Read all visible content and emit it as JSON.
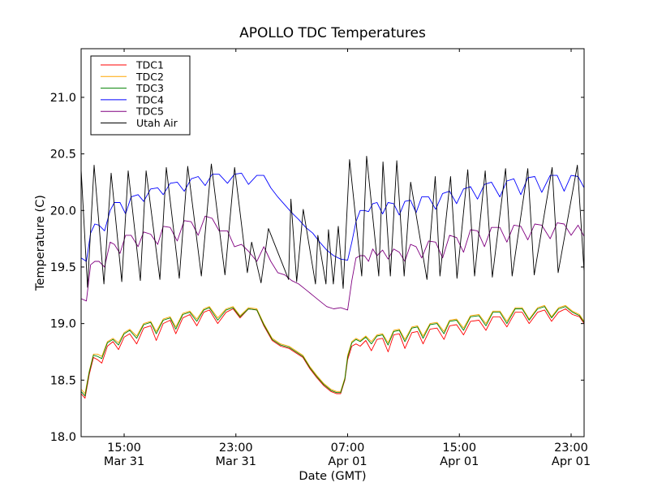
{
  "chart_data": {
    "type": "line",
    "title": "APOLLO TDC Temperatures",
    "xlabel": "Date (GMT)",
    "ylabel": "Temperature (C)",
    "x_units": "hours since Mar 31 00:00 GMT",
    "xlim": [
      11.92,
      47.93
    ],
    "ylim": [
      18.0,
      21.43
    ],
    "grid": false,
    "legend_position": "top-left",
    "xticks": [
      {
        "value": 15,
        "line1": "15:00",
        "line2": "Mar 31"
      },
      {
        "value": 23,
        "line1": "23:00",
        "line2": "Mar 31"
      },
      {
        "value": 31,
        "line1": "07:00",
        "line2": "Apr 01"
      },
      {
        "value": 39,
        "line1": "15:00",
        "line2": "Apr 01"
      },
      {
        "value": 47,
        "line1": "23:00",
        "line2": "Apr 01"
      }
    ],
    "yticks": [
      {
        "value": 18.0,
        "label": "18.0"
      },
      {
        "value": 18.5,
        "label": "18.5"
      },
      {
        "value": 19.0,
        "label": "19.0"
      },
      {
        "value": 19.5,
        "label": "19.5"
      },
      {
        "value": 20.0,
        "label": "20.0"
      },
      {
        "value": 20.5,
        "label": "20.5"
      },
      {
        "value": 21.0,
        "label": "21.0"
      }
    ],
    "series": [
      {
        "name": "TDC1",
        "color": "#ff0000",
        "x": [
          11.92,
          12.2,
          12.5,
          12.8,
          13.1,
          13.4,
          13.8,
          14.2,
          14.6,
          15.0,
          15.4,
          15.9,
          16.4,
          16.9,
          17.3,
          17.8,
          18.3,
          18.7,
          19.2,
          19.7,
          20.2,
          20.7,
          21.1,
          21.7,
          22.3,
          22.8,
          23.3,
          23.9,
          24.5,
          25.0,
          25.6,
          26.2,
          26.8,
          27.3,
          27.8,
          28.3,
          28.8,
          29.3,
          29.8,
          30.2,
          30.5,
          30.8,
          31.0,
          31.3,
          31.6,
          31.9,
          32.3,
          32.7,
          33.1,
          33.5,
          33.9,
          34.3,
          34.7,
          35.1,
          35.6,
          36.0,
          36.4,
          36.9,
          37.4,
          37.9,
          38.3,
          38.8,
          39.3,
          39.8,
          40.4,
          40.9,
          41.4,
          41.9,
          42.4,
          43.0,
          43.5,
          44.0,
          44.6,
          45.1,
          45.6,
          46.1,
          46.6,
          47.1,
          47.6,
          47.93
        ],
        "y": [
          18.38,
          18.34,
          18.55,
          18.7,
          18.68,
          18.65,
          18.8,
          18.84,
          18.77,
          18.88,
          18.91,
          18.82,
          18.96,
          18.98,
          18.85,
          19.0,
          19.03,
          18.91,
          19.05,
          19.08,
          18.98,
          19.1,
          19.12,
          19.0,
          19.1,
          19.13,
          19.05,
          19.13,
          19.12,
          18.98,
          18.85,
          18.8,
          18.78,
          18.74,
          18.7,
          18.6,
          18.52,
          18.45,
          18.4,
          18.38,
          18.38,
          18.5,
          18.68,
          18.8,
          18.82,
          18.8,
          18.85,
          18.76,
          18.86,
          18.87,
          18.75,
          18.9,
          18.91,
          18.78,
          18.92,
          18.93,
          18.82,
          18.95,
          18.96,
          18.86,
          18.98,
          18.99,
          18.9,
          19.02,
          19.03,
          18.94,
          19.06,
          19.06,
          18.97,
          19.1,
          19.1,
          19.0,
          19.1,
          19.12,
          19.02,
          19.1,
          19.13,
          19.08,
          19.06,
          19.0
        ]
      },
      {
        "name": "TDC2",
        "color": "#ffa500",
        "x": [
          11.92,
          12.2,
          12.5,
          12.8,
          13.1,
          13.4,
          13.8,
          14.2,
          14.6,
          15.0,
          15.4,
          15.9,
          16.4,
          16.9,
          17.3,
          17.8,
          18.3,
          18.7,
          19.2,
          19.7,
          20.2,
          20.7,
          21.1,
          21.7,
          22.3,
          22.8,
          23.3,
          23.9,
          24.5,
          25.0,
          25.6,
          26.2,
          26.8,
          27.3,
          27.8,
          28.3,
          28.8,
          29.3,
          29.8,
          30.2,
          30.5,
          30.8,
          31.0,
          31.3,
          31.6,
          31.9,
          32.3,
          32.7,
          33.1,
          33.5,
          33.9,
          34.3,
          34.7,
          35.1,
          35.6,
          36.0,
          36.4,
          36.9,
          37.4,
          37.9,
          38.3,
          38.8,
          39.3,
          39.8,
          40.4,
          40.9,
          41.4,
          41.9,
          42.4,
          43.0,
          43.5,
          44.0,
          44.6,
          45.1,
          45.6,
          46.1,
          46.6,
          47.1,
          47.6,
          47.93
        ],
        "y": [
          18.42,
          18.38,
          18.58,
          18.73,
          18.73,
          18.71,
          18.84,
          18.87,
          18.83,
          18.92,
          18.95,
          18.89,
          19.0,
          19.02,
          18.93,
          19.04,
          19.06,
          18.97,
          19.09,
          19.11,
          19.04,
          19.13,
          19.15,
          19.05,
          19.13,
          19.15,
          19.07,
          19.14,
          19.13,
          19.0,
          18.87,
          18.82,
          18.8,
          18.76,
          18.72,
          18.62,
          18.54,
          18.47,
          18.42,
          18.4,
          18.4,
          18.52,
          18.72,
          18.84,
          18.87,
          18.85,
          18.89,
          18.84,
          18.9,
          18.91,
          18.83,
          18.94,
          18.95,
          18.86,
          18.97,
          18.98,
          18.89,
          19.0,
          19.01,
          18.93,
          19.03,
          19.04,
          18.96,
          19.07,
          19.08,
          19.0,
          19.11,
          19.11,
          19.02,
          19.14,
          19.14,
          19.04,
          19.14,
          19.16,
          19.06,
          19.14,
          19.16,
          19.11,
          19.08,
          19.02
        ]
      },
      {
        "name": "TDC3",
        "color": "#008000",
        "x": [
          11.92,
          12.2,
          12.5,
          12.8,
          13.1,
          13.4,
          13.8,
          14.2,
          14.6,
          15.0,
          15.4,
          15.9,
          16.4,
          16.9,
          17.3,
          17.8,
          18.3,
          18.7,
          19.2,
          19.7,
          20.2,
          20.7,
          21.1,
          21.7,
          22.3,
          22.8,
          23.3,
          23.9,
          24.5,
          25.0,
          25.6,
          26.2,
          26.8,
          27.3,
          27.8,
          28.3,
          28.8,
          29.3,
          29.8,
          30.2,
          30.5,
          30.8,
          31.0,
          31.3,
          31.6,
          31.9,
          32.3,
          32.7,
          33.1,
          33.5,
          33.9,
          34.3,
          34.7,
          35.1,
          35.6,
          36.0,
          36.4,
          36.9,
          37.4,
          37.9,
          38.3,
          38.8,
          39.3,
          39.8,
          40.4,
          40.9,
          41.4,
          41.9,
          42.4,
          43.0,
          43.5,
          44.0,
          44.6,
          45.1,
          45.6,
          46.1,
          46.6,
          47.1,
          47.6,
          47.93
        ],
        "y": [
          18.4,
          18.36,
          18.57,
          18.72,
          18.71,
          18.69,
          18.83,
          18.86,
          18.81,
          18.91,
          18.94,
          18.87,
          18.99,
          19.01,
          18.91,
          19.03,
          19.05,
          18.95,
          19.08,
          19.1,
          19.02,
          19.12,
          19.14,
          19.03,
          19.12,
          19.14,
          19.06,
          19.13,
          19.12,
          18.99,
          18.86,
          18.81,
          18.79,
          18.75,
          18.71,
          18.61,
          18.53,
          18.46,
          18.41,
          18.39,
          18.39,
          18.51,
          18.7,
          18.83,
          18.86,
          18.84,
          18.88,
          18.82,
          18.89,
          18.9,
          18.81,
          18.93,
          18.94,
          18.84,
          18.96,
          18.97,
          18.87,
          18.99,
          19.0,
          18.91,
          19.02,
          19.03,
          18.94,
          19.06,
          19.07,
          18.98,
          19.1,
          19.1,
          19.0,
          19.13,
          19.13,
          19.03,
          19.13,
          19.15,
          19.05,
          19.13,
          19.15,
          19.1,
          19.07,
          19.01
        ]
      },
      {
        "name": "TDC4",
        "color": "#0000ff",
        "x": [
          11.92,
          12.3,
          12.6,
          12.9,
          13.2,
          13.6,
          14.0,
          14.3,
          14.7,
          15.1,
          15.5,
          16.0,
          16.4,
          16.9,
          17.4,
          17.8,
          18.3,
          18.8,
          19.3,
          19.8,
          20.3,
          20.8,
          21.3,
          21.8,
          22.4,
          22.9,
          23.4,
          23.9,
          24.5,
          25.0,
          25.5,
          26.0,
          26.5,
          27.0,
          27.5,
          28.0,
          28.5,
          29.0,
          29.5,
          30.0,
          30.5,
          31.0,
          31.3,
          31.6,
          31.9,
          32.2,
          32.5,
          32.8,
          33.1,
          33.5,
          33.9,
          34.3,
          34.7,
          35.1,
          35.5,
          35.9,
          36.3,
          36.8,
          37.3,
          37.8,
          38.3,
          38.8,
          39.3,
          39.8,
          40.3,
          40.8,
          41.3,
          41.9,
          42.4,
          42.9,
          43.4,
          43.9,
          44.4,
          44.9,
          45.5,
          46.0,
          46.5,
          47.0,
          47.5,
          47.93
        ],
        "y": [
          19.58,
          19.55,
          19.8,
          19.88,
          19.87,
          19.82,
          20.0,
          20.07,
          20.07,
          19.97,
          20.12,
          20.14,
          20.08,
          20.19,
          20.2,
          20.14,
          20.24,
          20.25,
          20.17,
          20.28,
          20.3,
          20.22,
          20.32,
          20.32,
          20.24,
          20.32,
          20.33,
          20.23,
          20.31,
          20.31,
          20.2,
          20.12,
          20.05,
          19.98,
          19.92,
          19.85,
          19.8,
          19.72,
          19.65,
          19.6,
          19.57,
          19.56,
          19.72,
          19.9,
          20.0,
          20.0,
          19.99,
          20.06,
          20.07,
          19.97,
          20.07,
          20.06,
          19.96,
          20.08,
          20.09,
          19.98,
          20.12,
          20.12,
          20.01,
          20.15,
          20.17,
          20.06,
          20.19,
          20.21,
          20.1,
          20.23,
          20.25,
          20.12,
          20.26,
          20.28,
          20.14,
          20.29,
          20.3,
          20.16,
          20.31,
          20.31,
          20.17,
          20.31,
          20.3,
          20.2
        ]
      },
      {
        "name": "TDC5",
        "color": "#800080",
        "x": [
          11.92,
          12.3,
          12.6,
          12.9,
          13.2,
          13.6,
          14.0,
          14.3,
          14.7,
          15.1,
          15.5,
          16.0,
          16.4,
          16.9,
          17.4,
          17.8,
          18.3,
          18.8,
          19.3,
          19.8,
          20.3,
          20.8,
          21.3,
          21.8,
          22.4,
          22.9,
          23.4,
          23.9,
          24.5,
          25.0,
          25.5,
          26.0,
          26.5,
          27.0,
          27.5,
          28.0,
          28.5,
          29.0,
          29.5,
          30.0,
          30.5,
          31.0,
          31.3,
          31.6,
          31.9,
          32.2,
          32.5,
          32.8,
          33.1,
          33.5,
          33.9,
          34.3,
          34.7,
          35.1,
          35.5,
          35.9,
          36.3,
          36.8,
          37.3,
          37.8,
          38.3,
          38.8,
          39.3,
          39.8,
          40.3,
          40.8,
          41.3,
          41.9,
          42.4,
          42.9,
          43.4,
          43.9,
          44.4,
          44.9,
          45.5,
          46.0,
          46.5,
          47.0,
          47.5,
          47.93
        ],
        "y": [
          19.22,
          19.2,
          19.52,
          19.55,
          19.55,
          19.5,
          19.72,
          19.7,
          19.62,
          19.78,
          19.78,
          19.68,
          19.81,
          19.79,
          19.7,
          19.86,
          19.85,
          19.73,
          19.91,
          19.9,
          19.78,
          19.95,
          19.93,
          19.82,
          19.82,
          19.68,
          19.7,
          19.64,
          19.55,
          19.68,
          19.55,
          19.45,
          19.43,
          19.38,
          19.35,
          19.3,
          19.25,
          19.2,
          19.15,
          19.13,
          19.14,
          19.12,
          19.38,
          19.58,
          19.6,
          19.6,
          19.55,
          19.66,
          19.6,
          19.65,
          19.57,
          19.66,
          19.63,
          19.55,
          19.7,
          19.68,
          19.58,
          19.73,
          19.72,
          19.58,
          19.78,
          19.76,
          19.63,
          19.83,
          19.82,
          19.68,
          19.85,
          19.85,
          19.72,
          19.87,
          19.86,
          19.74,
          19.88,
          19.87,
          19.75,
          19.89,
          19.88,
          19.78,
          19.87,
          19.77
        ]
      },
      {
        "name": "Utah Air",
        "color": "#000000",
        "x": [
          11.92,
          12.38,
          12.85,
          13.55,
          14.07,
          14.83,
          15.29,
          16.16,
          16.57,
          17.56,
          18.02,
          18.95,
          19.55,
          20.53,
          21.24,
          22.22,
          22.91,
          23.82,
          24.13,
          24.8,
          25.33,
          26.77,
          26.94,
          27.35,
          27.82,
          28.7,
          28.87,
          29.45,
          29.63,
          29.98,
          30.33,
          30.68,
          31.14,
          32.01,
          32.36,
          33.23,
          33.53,
          34.06,
          34.52,
          35.05,
          35.51,
          36.68,
          37.27,
          37.61,
          38.37,
          38.83,
          39.6,
          40.09,
          40.85,
          41.36,
          42.31,
          42.78,
          43.9,
          44.36,
          45.64,
          46.07,
          47.45,
          47.93
        ],
        "y": [
          20.36,
          19.32,
          20.4,
          19.35,
          20.33,
          19.37,
          20.35,
          19.38,
          20.35,
          19.39,
          20.38,
          19.4,
          20.39,
          19.42,
          20.41,
          19.43,
          20.38,
          19.45,
          19.72,
          19.36,
          19.84,
          19.39,
          20.1,
          19.37,
          20.01,
          19.35,
          19.78,
          19.35,
          19.83,
          19.35,
          19.86,
          19.31,
          20.45,
          19.42,
          20.48,
          19.42,
          20.43,
          19.42,
          20.44,
          19.42,
          20.25,
          19.39,
          20.3,
          19.42,
          20.3,
          19.4,
          20.36,
          19.42,
          20.35,
          19.41,
          20.37,
          19.42,
          20.37,
          19.43,
          20.38,
          19.45,
          20.4,
          19.46
        ]
      }
    ]
  }
}
